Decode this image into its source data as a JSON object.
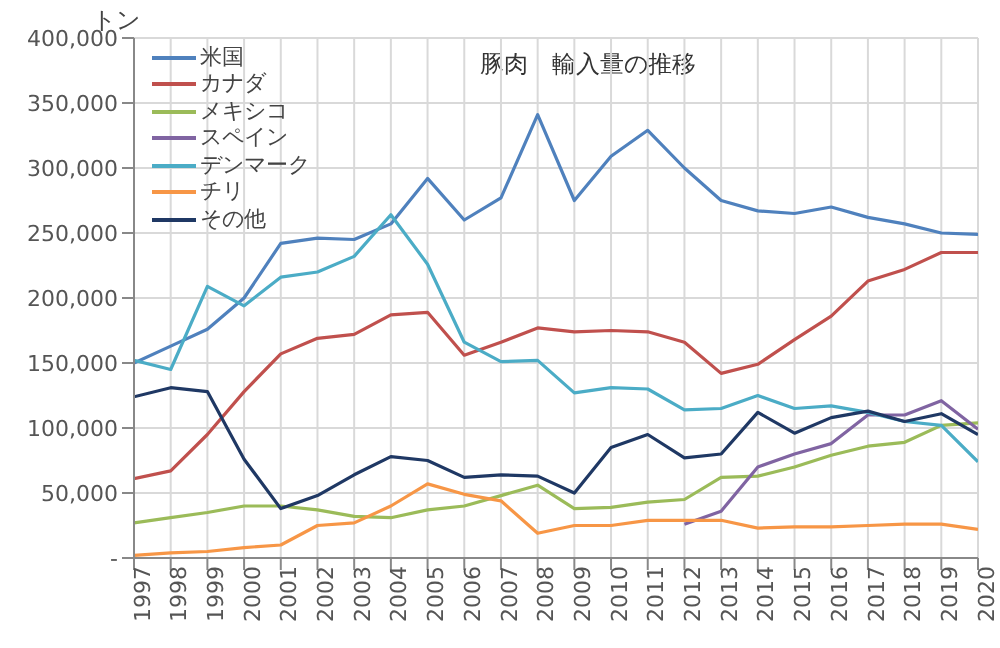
{
  "chart_data": {
    "type": "line",
    "title": "豚肉　輸入量の推移",
    "ylabel": "トン",
    "x": [
      1997,
      1998,
      1999,
      2000,
      2001,
      2002,
      2003,
      2004,
      2005,
      2006,
      2007,
      2008,
      2009,
      2010,
      2011,
      2012,
      2013,
      2014,
      2015,
      2016,
      2017,
      2018,
      2019,
      2020
    ],
    "xlim": [
      1997,
      2020
    ],
    "xticks": [
      1997,
      1998,
      1999,
      2000,
      2001,
      2002,
      2003,
      2004,
      2005,
      2006,
      2007,
      2008,
      2009,
      2010,
      2011,
      2012,
      2013,
      2014,
      2015,
      2016,
      2017,
      2018,
      2019,
      2020
    ],
    "ylim": [
      0,
      400000
    ],
    "yticks": [
      {
        "value": 0,
        "label": "-"
      },
      {
        "value": 50000,
        "label": "50,000"
      },
      {
        "value": 100000,
        "label": "100,000"
      },
      {
        "value": 150000,
        "label": "150,000"
      },
      {
        "value": 200000,
        "label": "200,000"
      },
      {
        "value": 250000,
        "label": "250,000"
      },
      {
        "value": 300000,
        "label": "300,000"
      },
      {
        "value": 350000,
        "label": "350,000"
      },
      {
        "value": 400000,
        "label": "400,000"
      }
    ],
    "grid": true,
    "legend": "top left",
    "marker": "none",
    "line_style": "solid",
    "series": [
      {
        "name": "米国",
        "color": "#4f81bd",
        "values": [
          150000,
          163000,
          176000,
          200000,
          242000,
          246000,
          245000,
          257000,
          292000,
          260000,
          277000,
          341000,
          275000,
          309000,
          329000,
          300000,
          275000,
          267000,
          265000,
          270000,
          262000,
          257000,
          250000,
          249000
        ]
      },
      {
        "name": "カナダ",
        "color": "#c0504d",
        "values": [
          61000,
          67000,
          95000,
          128000,
          157000,
          169000,
          172000,
          187000,
          189000,
          156000,
          166000,
          177000,
          174000,
          175000,
          174000,
          166000,
          142000,
          149000,
          168000,
          186000,
          213000,
          222000,
          235000,
          235000
        ]
      },
      {
        "name": "メキシコ",
        "color": "#9bbb59",
        "values": [
          27000,
          31000,
          35000,
          40000,
          40000,
          37000,
          32000,
          31000,
          37000,
          40000,
          48000,
          56000,
          38000,
          39000,
          43000,
          45000,
          62000,
          63000,
          70000,
          79000,
          86000,
          89000,
          102000,
          104000
        ]
      },
      {
        "name": "スペイン",
        "color": "#8064a2",
        "values": [
          null,
          null,
          null,
          null,
          null,
          null,
          null,
          null,
          null,
          null,
          null,
          null,
          null,
          null,
          null,
          26000,
          36000,
          70000,
          80000,
          88000,
          110000,
          110000,
          121000,
          99000
        ]
      },
      {
        "name": "デンマーク",
        "color": "#4bacc6",
        "values": [
          152000,
          145000,
          209000,
          194000,
          216000,
          220000,
          232000,
          264000,
          226000,
          166000,
          151000,
          152000,
          127000,
          131000,
          130000,
          114000,
          115000,
          125000,
          115000,
          117000,
          112000,
          105000,
          102000,
          74000
        ]
      },
      {
        "name": "チリ",
        "color": "#f79646",
        "values": [
          2000,
          4000,
          5000,
          8000,
          10000,
          25000,
          27000,
          40000,
          57000,
          49000,
          44000,
          19000,
          25000,
          25000,
          29000,
          29000,
          29000,
          23000,
          24000,
          24000,
          25000,
          26000,
          26000,
          22000
        ]
      },
      {
        "name": "その他",
        "color": "#1f3864",
        "values": [
          124000,
          131000,
          128000,
          76000,
          38000,
          48000,
          64000,
          78000,
          75000,
          62000,
          64000,
          63000,
          50000,
          85000,
          95000,
          77000,
          80000,
          112000,
          96000,
          108000,
          113000,
          105000,
          111000,
          95000
        ]
      }
    ]
  }
}
